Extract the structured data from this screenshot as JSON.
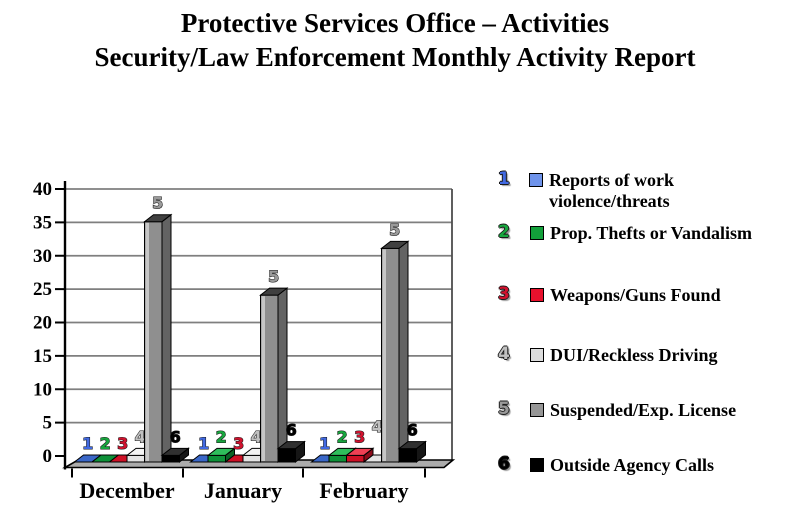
{
  "title": {
    "line1": "Protective Services Office – Activities",
    "line2": "Security/Law Enforcement Monthly Activity Report"
  },
  "chart_data": {
    "type": "bar",
    "title": "Protective Services Office – Activities Security/Law Enforcement Monthly Activity Report",
    "categories": [
      "December",
      "January",
      "February"
    ],
    "series": [
      {
        "num": "1",
        "name": "Reports of work violence/threats",
        "values": [
          0,
          0,
          0
        ],
        "colors": {
          "face": "#3A67C8",
          "top": "#5E88E0",
          "side": "#27458C",
          "swatch": "#6E93EA",
          "label": "#4169E1"
        }
      },
      {
        "num": "2",
        "name": "Prop. Thefts or Vandalism",
        "values": [
          0,
          1,
          1
        ],
        "colors": {
          "face": "#0E9138",
          "top": "#2FBE5C",
          "side": "#0A6326",
          "swatch": "#12A03A",
          "label": "#18A63E"
        }
      },
      {
        "num": "3",
        "name": "Weapons/Guns Found",
        "values": [
          0,
          0,
          1
        ],
        "colors": {
          "face": "#CE1126",
          "top": "#EF4054",
          "side": "#8C0B1A",
          "swatch": "#E8112D",
          "label": "#D2122E"
        }
      },
      {
        "num": "4",
        "name": "DUI/Reckless Driving",
        "values": [
          1,
          1,
          0
        ],
        "colors": {
          "face": "#E4E4E4",
          "top": "#F4F4F4",
          "side": "#ADADAD",
          "swatch": "#DCDCDC",
          "label": "#C0C0C0"
        }
      },
      {
        "num": "5",
        "name": "Suspended/Exp. License",
        "values": [
          36,
          25,
          32
        ],
        "colors": {
          "face": "#8F8F8F",
          "top": "#404040",
          "side": "#636363",
          "hl": "#C6C6C6",
          "swatch": "#969696",
          "label": "#9A9A9A"
        }
      },
      {
        "num": "6",
        "name": "Outside Agency Calls",
        "values": [
          1,
          2,
          2
        ],
        "colors": {
          "face": "#000000",
          "top": "#303030",
          "side": "#161616",
          "swatch": "#000000",
          "label": "#000000"
        }
      }
    ],
    "ylim": [
      0,
      40
    ],
    "ytick_step": 5,
    "yticks": [
      0,
      5,
      10,
      15,
      20,
      25,
      30,
      35,
      40
    ],
    "grid": true,
    "legend_position": "right",
    "gridline_color": "#7F7F7F",
    "floor_color": "#ABABAB",
    "axis_color": "#000000"
  }
}
